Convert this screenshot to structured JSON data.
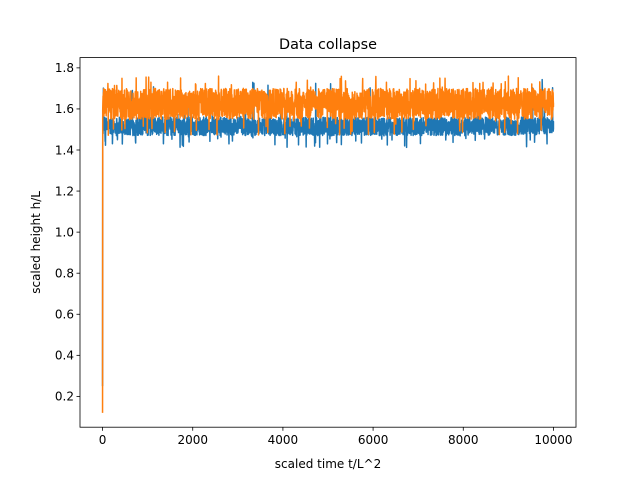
{
  "chart_data": {
    "type": "line",
    "title": "Data collapse",
    "xlabel": "scaled time t/L^2",
    "ylabel": "scaled height h/L",
    "xlim": [
      -500,
      10500
    ],
    "ylim": [
      0.05,
      1.85
    ],
    "xticks": [
      0,
      2000,
      4000,
      6000,
      8000,
      10000
    ],
    "yticks": [
      0.2,
      0.4,
      0.6,
      0.8,
      1.0,
      1.2,
      1.4,
      1.6,
      1.8
    ],
    "xtick_labels": [
      "0",
      "2000",
      "4000",
      "6000",
      "8000",
      "10000"
    ],
    "ytick_labels": [
      "0.2",
      "0.4",
      "0.6",
      "0.8",
      "1.0",
      "1.2",
      "1.4",
      "1.6",
      "1.8"
    ],
    "grid": false,
    "series": [
      {
        "color": "#1f77b4",
        "start": 0.25,
        "x_range": [
          0,
          10000
        ],
        "band_low": 1.47,
        "band_high": 1.56,
        "min": 1.41,
        "max": 1.75,
        "points": [
          [
            0,
            0.25
          ],
          [
            10,
            1.6
          ],
          [
            100,
            1.5
          ],
          [
            1000,
            1.5
          ],
          [
            3000,
            1.52
          ],
          [
            5000,
            1.51
          ],
          [
            6700,
            1.42
          ],
          [
            8000,
            1.51
          ],
          [
            10000,
            1.5
          ]
        ]
      },
      {
        "color": "#ff7f0e",
        "start": 0.12,
        "x_range": [
          0,
          10000
        ],
        "band_low": 1.55,
        "band_high": 1.7,
        "min": 1.47,
        "max": 1.76,
        "points": [
          [
            0,
            0.12
          ],
          [
            10,
            1.65
          ],
          [
            100,
            1.62
          ],
          [
            1000,
            1.63
          ],
          [
            3000,
            1.64
          ],
          [
            5000,
            1.63
          ],
          [
            8000,
            1.64
          ],
          [
            9000,
            1.76
          ],
          [
            10000,
            1.63
          ]
        ]
      }
    ]
  }
}
